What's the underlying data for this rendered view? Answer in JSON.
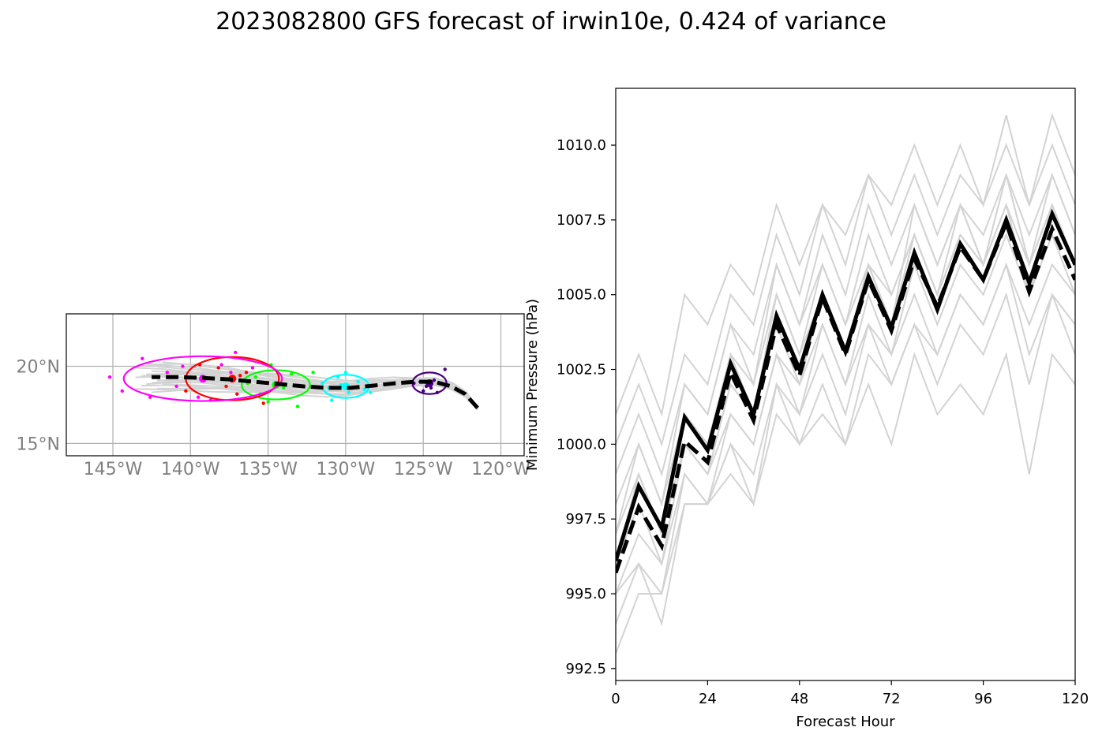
{
  "title": "2023082800 GFS forecast of irwin10e, 0.424 of variance",
  "colors": {
    "ensemble": "#d3d3d3",
    "mean": "#000000",
    "ellipse_24h": "#4b0082",
    "ellipse_48h": "#00ffff",
    "ellipse_72h": "#00ff00",
    "ellipse_96h": "#ff0000",
    "ellipse_120h": "#ff00ff",
    "grid": "#b0b0b0",
    "map_tick": "#808080"
  },
  "chart_data": [
    {
      "type": "scatter",
      "subtype": "track map",
      "xlim": [
        -148,
        -118.5
      ],
      "ylim": [
        14.2,
        23.4
      ],
      "x_ticks": [
        -145,
        -140,
        -135,
        -130,
        -125,
        -120
      ],
      "x_tick_labels": [
        "145°W",
        "140°W",
        "135°W",
        "130°W",
        "125°W",
        "120°W"
      ],
      "y_ticks": [
        15,
        20
      ],
      "y_tick_labels": [
        "15°N",
        "20°N"
      ],
      "grid": true,
      "mean_track": {
        "lon": [
          -121.5,
          -122.3,
          -123.2,
          -124.3,
          -125.5,
          -126.8,
          -128.2,
          -129.7,
          -131.2,
          -132.7,
          -134.3,
          -135.9,
          -137.5,
          -139.2,
          -140.9,
          -142.5
        ],
        "lat": [
          17.3,
          18.2,
          18.7,
          19.0,
          19.0,
          18.9,
          18.75,
          18.6,
          18.6,
          18.7,
          18.85,
          19.0,
          19.15,
          19.25,
          19.3,
          19.3
        ]
      },
      "ensemble_track_count": 20,
      "ellipses": [
        {
          "hour": 24,
          "color": "#4b0082",
          "center": [
            -124.6,
            18.9
          ],
          "radius": [
            1.1,
            0.7
          ],
          "points": [
            [
              -125.2,
              19.0
            ],
            [
              -124.8,
              18.7
            ],
            [
              -124.3,
              19.1
            ],
            [
              -124.0,
              18.9
            ],
            [
              -125.0,
              18.4
            ],
            [
              -123.6,
              19.8
            ],
            [
              -124.5,
              18.6
            ],
            [
              -125.6,
              18.9
            ],
            [
              -124.1,
              18.3
            ]
          ]
        },
        {
          "hour": 48,
          "color": "#00ffff",
          "center": [
            -130.0,
            18.7
          ],
          "radius": [
            1.5,
            0.75
          ],
          "points": [
            [
              -131.1,
              18.6
            ],
            [
              -130.5,
              19.3
            ],
            [
              -129.8,
              18.3
            ],
            [
              -130.3,
              18.8
            ],
            [
              -128.8,
              18.5
            ],
            [
              -131.5,
              18.9
            ],
            [
              -130.9,
              17.8
            ],
            [
              -129.2,
              19.0
            ],
            [
              -130.0,
              19.6
            ],
            [
              -128.4,
              18.3
            ]
          ]
        },
        {
          "hour": 72,
          "color": "#00ff00",
          "center": [
            -134.5,
            18.8
          ],
          "radius": [
            2.2,
            0.95
          ],
          "points": [
            [
              -135.8,
              19.3
            ],
            [
              -134.0,
              18.6
            ],
            [
              -133.5,
              19.5
            ],
            [
              -135.0,
              17.7
            ],
            [
              -136.3,
              18.9
            ],
            [
              -133.1,
              17.4
            ],
            [
              -134.8,
              20.1
            ],
            [
              -132.1,
              19.6
            ],
            [
              -135.5,
              18.2
            ]
          ]
        },
        {
          "hour": 96,
          "color": "#ff0000",
          "center": [
            -137.3,
            19.2
          ],
          "radius": [
            3.0,
            1.4
          ],
          "points": [
            [
              -138.9,
              19.2
            ],
            [
              -137.7,
              18.7
            ],
            [
              -136.4,
              19.6
            ],
            [
              -139.4,
              20.1
            ],
            [
              -137.0,
              18.2
            ],
            [
              -140.3,
              18.4
            ],
            [
              -135.3,
              17.6
            ],
            [
              -138.2,
              19.9
            ],
            [
              -136.8,
              19.4
            ]
          ]
        },
        {
          "hour": 120,
          "color": "#ff00ff",
          "center": [
            -139.2,
            19.2
          ],
          "radius": [
            5.1,
            1.45
          ],
          "points": [
            [
              -142.1,
              19.3
            ],
            [
              -140.5,
              20.0
            ],
            [
              -138.0,
              20.1
            ],
            [
              -144.4,
              18.4
            ],
            [
              -137.1,
              20.9
            ],
            [
              -141.5,
              19.6
            ],
            [
              -139.5,
              18.0
            ],
            [
              -143.1,
              20.5
            ],
            [
              -136.0,
              19.9
            ],
            [
              -145.2,
              19.3
            ],
            [
              -138.7,
              17.8
            ],
            [
              -140.9,
              18.7
            ],
            [
              -142.6,
              18.0
            ],
            [
              -137.4,
              19.6
            ]
          ]
        }
      ]
    },
    {
      "type": "line",
      "xlabel": "Forecast Hour",
      "ylabel": "Minimum Pressure (hPa)",
      "xlim": [
        0,
        120
      ],
      "ylim": [
        992.1,
        1011.9
      ],
      "x_ticks": [
        0,
        24,
        48,
        72,
        96,
        120
      ],
      "y_ticks": [
        992.5,
        995.0,
        997.5,
        1000.0,
        1002.5,
        1005.0,
        1007.5,
        1010.0
      ],
      "y_tick_labels": [
        "992.5",
        "995.0",
        "997.5",
        "1000.0",
        "1002.5",
        "1005.0",
        "1007.5",
        "1010.0"
      ],
      "x": [
        0,
        6,
        12,
        18,
        24,
        30,
        36,
        42,
        48,
        54,
        60,
        66,
        72,
        78,
        84,
        90,
        96,
        102,
        108,
        114,
        120
      ],
      "series": [
        {
          "style": "mean-solid",
          "values": [
            996.1,
            998.6,
            997.2,
            1000.9,
            999.8,
            1002.7,
            1001.0,
            1004.3,
            1002.5,
            1005.0,
            1003.1,
            1005.6,
            1003.9,
            1006.4,
            1004.5,
            1006.7,
            1005.5,
            1007.5,
            1005.4,
            1007.7,
            1006.0
          ]
        },
        {
          "style": "mean-dashed",
          "values": [
            995.7,
            997.9,
            996.6,
            1000.1,
            999.4,
            1002.4,
            1000.8,
            1004.0,
            1002.3,
            1004.9,
            1003.0,
            1005.5,
            1003.8,
            1006.2,
            1004.6,
            1006.6,
            1005.5,
            1007.4,
            1005.1,
            1007.2,
            1005.5
          ]
        },
        {
          "style": "ensemble",
          "values": [
            1001,
            1003,
            1001,
            1005,
            1004,
            1006,
            1005,
            1008,
            1006,
            1008,
            1007,
            1009,
            1008,
            1010,
            1008,
            1010,
            1008,
            1011,
            1008,
            1011,
            1009
          ]
        },
        {
          "style": "ensemble",
          "values": [
            1000,
            1002,
            1000,
            1003,
            1002,
            1005,
            1004,
            1007,
            1005,
            1008,
            1006,
            1009,
            1007,
            1009,
            1007,
            1009,
            1008,
            1010,
            1008,
            1010,
            1008
          ]
        },
        {
          "style": "ensemble",
          "values": [
            999,
            1001,
            999,
            1002,
            1001,
            1004,
            1003,
            1006,
            1004,
            1007,
            1005,
            1008,
            1006,
            1008,
            1006,
            1008,
            1007,
            1009,
            1007,
            1009,
            1007
          ]
        },
        {
          "style": "ensemble",
          "values": [
            998,
            1000,
            998,
            1001,
            1000,
            1003,
            1002,
            1005,
            1003,
            1006,
            1004,
            1007,
            1005,
            1007,
            1005,
            1008,
            1006,
            1009,
            1006,
            1008,
            1006
          ]
        },
        {
          "style": "ensemble",
          "values": [
            997,
            999,
            997,
            1000,
            999,
            1002,
            1001,
            1004,
            1002,
            1005,
            1003,
            1006,
            1004,
            1007,
            1005,
            1007,
            1006,
            1008,
            1005,
            1008,
            1006
          ]
        },
        {
          "style": "ensemble",
          "values": [
            996,
            998,
            996,
            1000,
            999,
            1001,
            1000,
            1003,
            1001,
            1004,
            1002,
            1005,
            1003,
            1006,
            1004,
            1006,
            1005,
            1007,
            1005,
            1007,
            1005
          ]
        },
        {
          "style": "ensemble",
          "values": [
            995,
            997,
            996,
            999,
            998,
            1001,
            1000,
            1003,
            1002,
            1004,
            1002,
            1004,
            1003,
            1005,
            1003,
            1005,
            1004,
            1006,
            1004,
            1006,
            1005
          ]
        },
        {
          "style": "ensemble",
          "values": [
            994,
            996,
            995,
            999,
            998,
            1000,
            999,
            1002,
            1001,
            1003,
            1001,
            1004,
            1002,
            1004,
            1003,
            1005,
            1004,
            1006,
            1003,
            1005,
            1004
          ]
        },
        {
          "style": "ensemble",
          "values": [
            993,
            995,
            995,
            998,
            998,
            1000,
            998,
            1002,
            1000,
            1002,
            1000,
            1003,
            1002,
            1004,
            1002,
            1004,
            1003,
            1005,
            1002,
            1005,
            1003
          ]
        },
        {
          "style": "ensemble",
          "values": [
            995,
            996,
            994,
            998,
            998,
            999,
            998,
            1001,
            1000,
            1001,
            1000,
            1002,
            1000,
            1003,
            1001,
            1002,
            1001,
            1003,
            999,
            1003,
            1002
          ]
        },
        {
          "style": "ensemble",
          "values": [
            997,
            1000,
            998,
            1002,
            1001,
            1004,
            1002,
            1006,
            1004,
            1006,
            1004,
            1006,
            1004,
            1008,
            1006,
            1008,
            1006,
            1009,
            1006,
            1009,
            1007
          ]
        },
        {
          "style": "ensemble",
          "values": [
            996,
            999,
            997,
            1001,
            1000,
            1003,
            1001,
            1005,
            1003,
            1005,
            1003,
            1006,
            1005,
            1007,
            1005,
            1007,
            1006,
            1008,
            1006,
            1008,
            1006
          ]
        }
      ]
    }
  ]
}
